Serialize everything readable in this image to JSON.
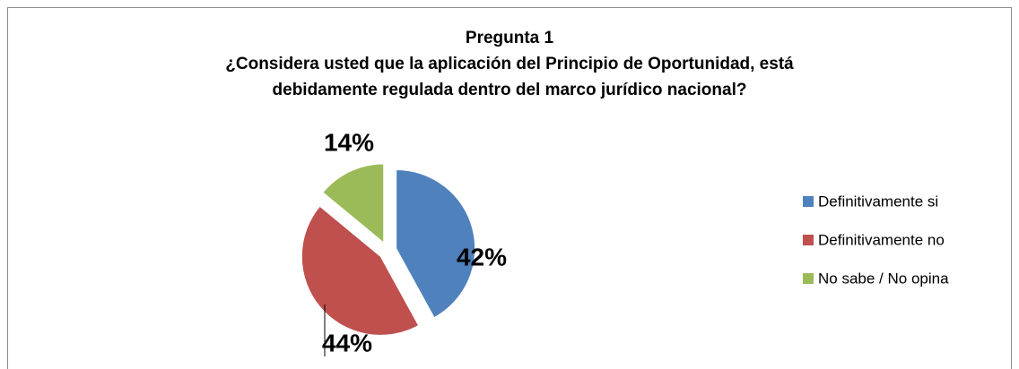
{
  "chart_data": {
    "type": "pie",
    "title": [
      "Pregunta 1",
      "¿Considera usted que la aplicación del Principio de Oportunidad, está",
      "debidamente regulada dentro del marco jurídico nacional?"
    ],
    "categories": [
      "Definitivamente si",
      "Definitivamente no",
      "No sabe / No opina"
    ],
    "values": [
      42,
      44,
      14
    ],
    "value_labels": [
      "42%",
      "44%",
      "14%"
    ],
    "colors": [
      "#4f81bd",
      "#c0504d",
      "#9bbb59"
    ],
    "legend": "right"
  }
}
